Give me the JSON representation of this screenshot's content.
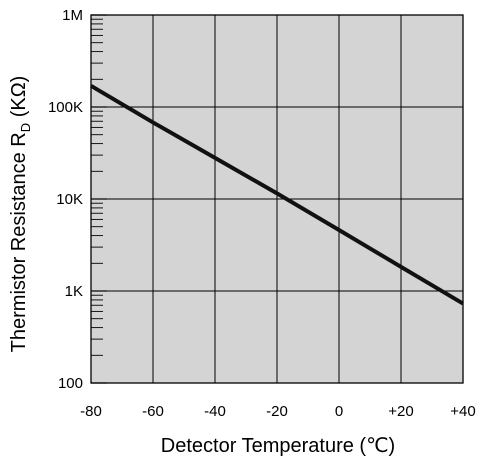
{
  "chart_data": {
    "type": "line",
    "title": "",
    "xlabel": "Detector Temperature (℃)",
    "ylabel": {
      "main": "Thermistor Resistance R",
      "subscript": "D",
      "unit": " (KΩ)"
    },
    "x_scale": "linear",
    "y_scale": "log",
    "xlim": [
      -80,
      40
    ],
    "ylim": [
      100,
      1000000
    ],
    "x_ticks": [
      {
        "value": -80,
        "label": "-80"
      },
      {
        "value": -60,
        "label": "-60"
      },
      {
        "value": -40,
        "label": "-40"
      },
      {
        "value": -20,
        "label": "-20"
      },
      {
        "value": 0,
        "label": "0"
      },
      {
        "value": 20,
        "label": "+20"
      },
      {
        "value": 40,
        "label": "+40"
      }
    ],
    "y_ticks": [
      {
        "value": 100,
        "label": "100"
      },
      {
        "value": 1000,
        "label": "1K"
      },
      {
        "value": 10000,
        "label": "10K"
      },
      {
        "value": 100000,
        "label": "100K"
      },
      {
        "value": 1000000,
        "label": "1M"
      }
    ],
    "grid": true,
    "background_color": "#d4d4d4",
    "line_color": "#111111",
    "series": [
      {
        "x": [
          -80,
          -60,
          -40,
          -20,
          0,
          20,
          40
        ],
        "y": [
          170000,
          68000,
          28000,
          11500,
          4600,
          1830,
          730
        ]
      }
    ]
  }
}
